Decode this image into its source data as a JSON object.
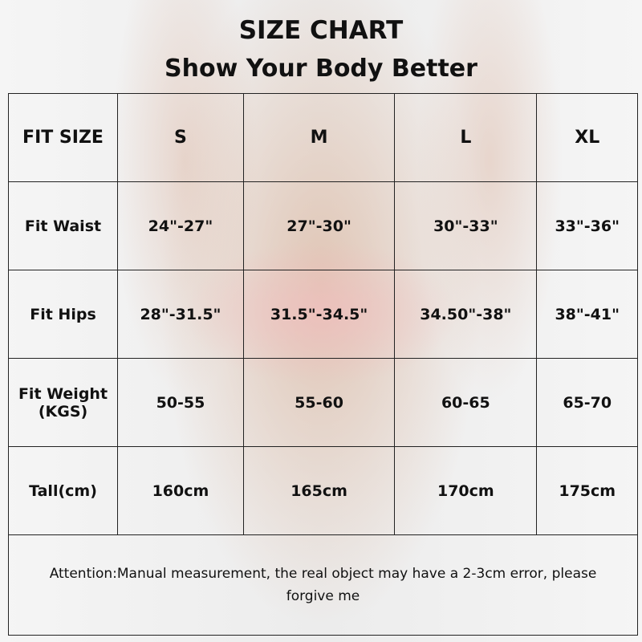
{
  "header": {
    "title": "SIZE CHART",
    "subtitle": "Show Your Body Better"
  },
  "table": {
    "columns": [
      "FIT SIZE",
      "S",
      "M",
      "L",
      "XL"
    ],
    "rows": [
      {
        "label": "Fit Waist",
        "values": [
          "24\"-27\"",
          "27\"-30\"",
          "30\"-33\"",
          "33\"-36\""
        ]
      },
      {
        "label": "Fit Hips",
        "values": [
          "28\"-31.5\"",
          "31.5\"-34.5\"",
          "34.50\"-38\"",
          "38\"-41\""
        ]
      },
      {
        "label": "Fit Weight",
        "label2": "(KGS)",
        "values": [
          "50-55",
          "55-60",
          "60-65",
          "65-70"
        ]
      },
      {
        "label": "Tall(cm)",
        "values": [
          "160cm",
          "165cm",
          "170cm",
          "175cm"
        ]
      }
    ],
    "note_line1": "Attention:Manual measurement, the real object may have a 2-3cm error, please",
    "note_line2": "forgive me"
  }
}
